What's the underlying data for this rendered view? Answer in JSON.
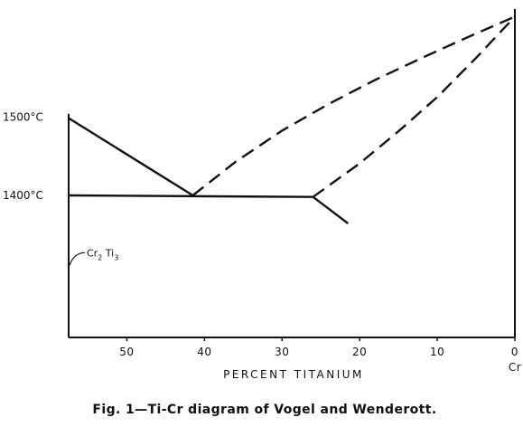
{
  "chart_data": {
    "type": "line",
    "title": "",
    "caption": "Fig. 1—Ti-Cr diagram of Vogel and Wenderott.",
    "xlabel": "PERCENT TITANIUM",
    "x_reversed": true,
    "xlim": [
      57.5,
      0
    ],
    "x_ticks": [
      {
        "value": 50,
        "label": "50"
      },
      {
        "value": 40,
        "label": "40"
      },
      {
        "value": 30,
        "label": "30"
      },
      {
        "value": 20,
        "label": "20"
      },
      {
        "value": 10,
        "label": "10"
      },
      {
        "value": 0,
        "label": "0"
      }
    ],
    "x_end_label": "Cr",
    "ylim": [
      1218,
      1648
    ],
    "y_ticks": [
      {
        "value": 1500,
        "label": "1500°C"
      },
      {
        "value": 1400,
        "label": "1400°C"
      }
    ],
    "grid": false,
    "series": [
      {
        "style": "solid",
        "points": [
          [
            57.5,
            1499
          ],
          [
            41.5,
            1400
          ]
        ]
      },
      {
        "style": "solid",
        "points": [
          [
            57.5,
            1400
          ],
          [
            26,
            1398
          ]
        ]
      },
      {
        "style": "solid",
        "points": [
          [
            26,
            1398
          ],
          [
            21.5,
            1364
          ]
        ]
      },
      {
        "style": "dashed",
        "points": [
          [
            41.5,
            1400
          ],
          [
            36,
            1443
          ],
          [
            30,
            1483
          ],
          [
            24,
            1517
          ],
          [
            18,
            1548
          ],
          [
            12,
            1576
          ],
          [
            6,
            1603
          ],
          [
            0,
            1629
          ]
        ]
      },
      {
        "style": "dashed",
        "points": [
          [
            26,
            1398
          ],
          [
            20,
            1441
          ],
          [
            15,
            1482
          ],
          [
            10,
            1526
          ],
          [
            5,
            1576
          ],
          [
            0,
            1629
          ]
        ]
      }
    ],
    "annotations": [
      {
        "text": "Cr",
        "subscript": "2",
        "text2": "Ti",
        "subscript2": "3",
        "x": 57.5,
        "y": 1315
      }
    ]
  }
}
